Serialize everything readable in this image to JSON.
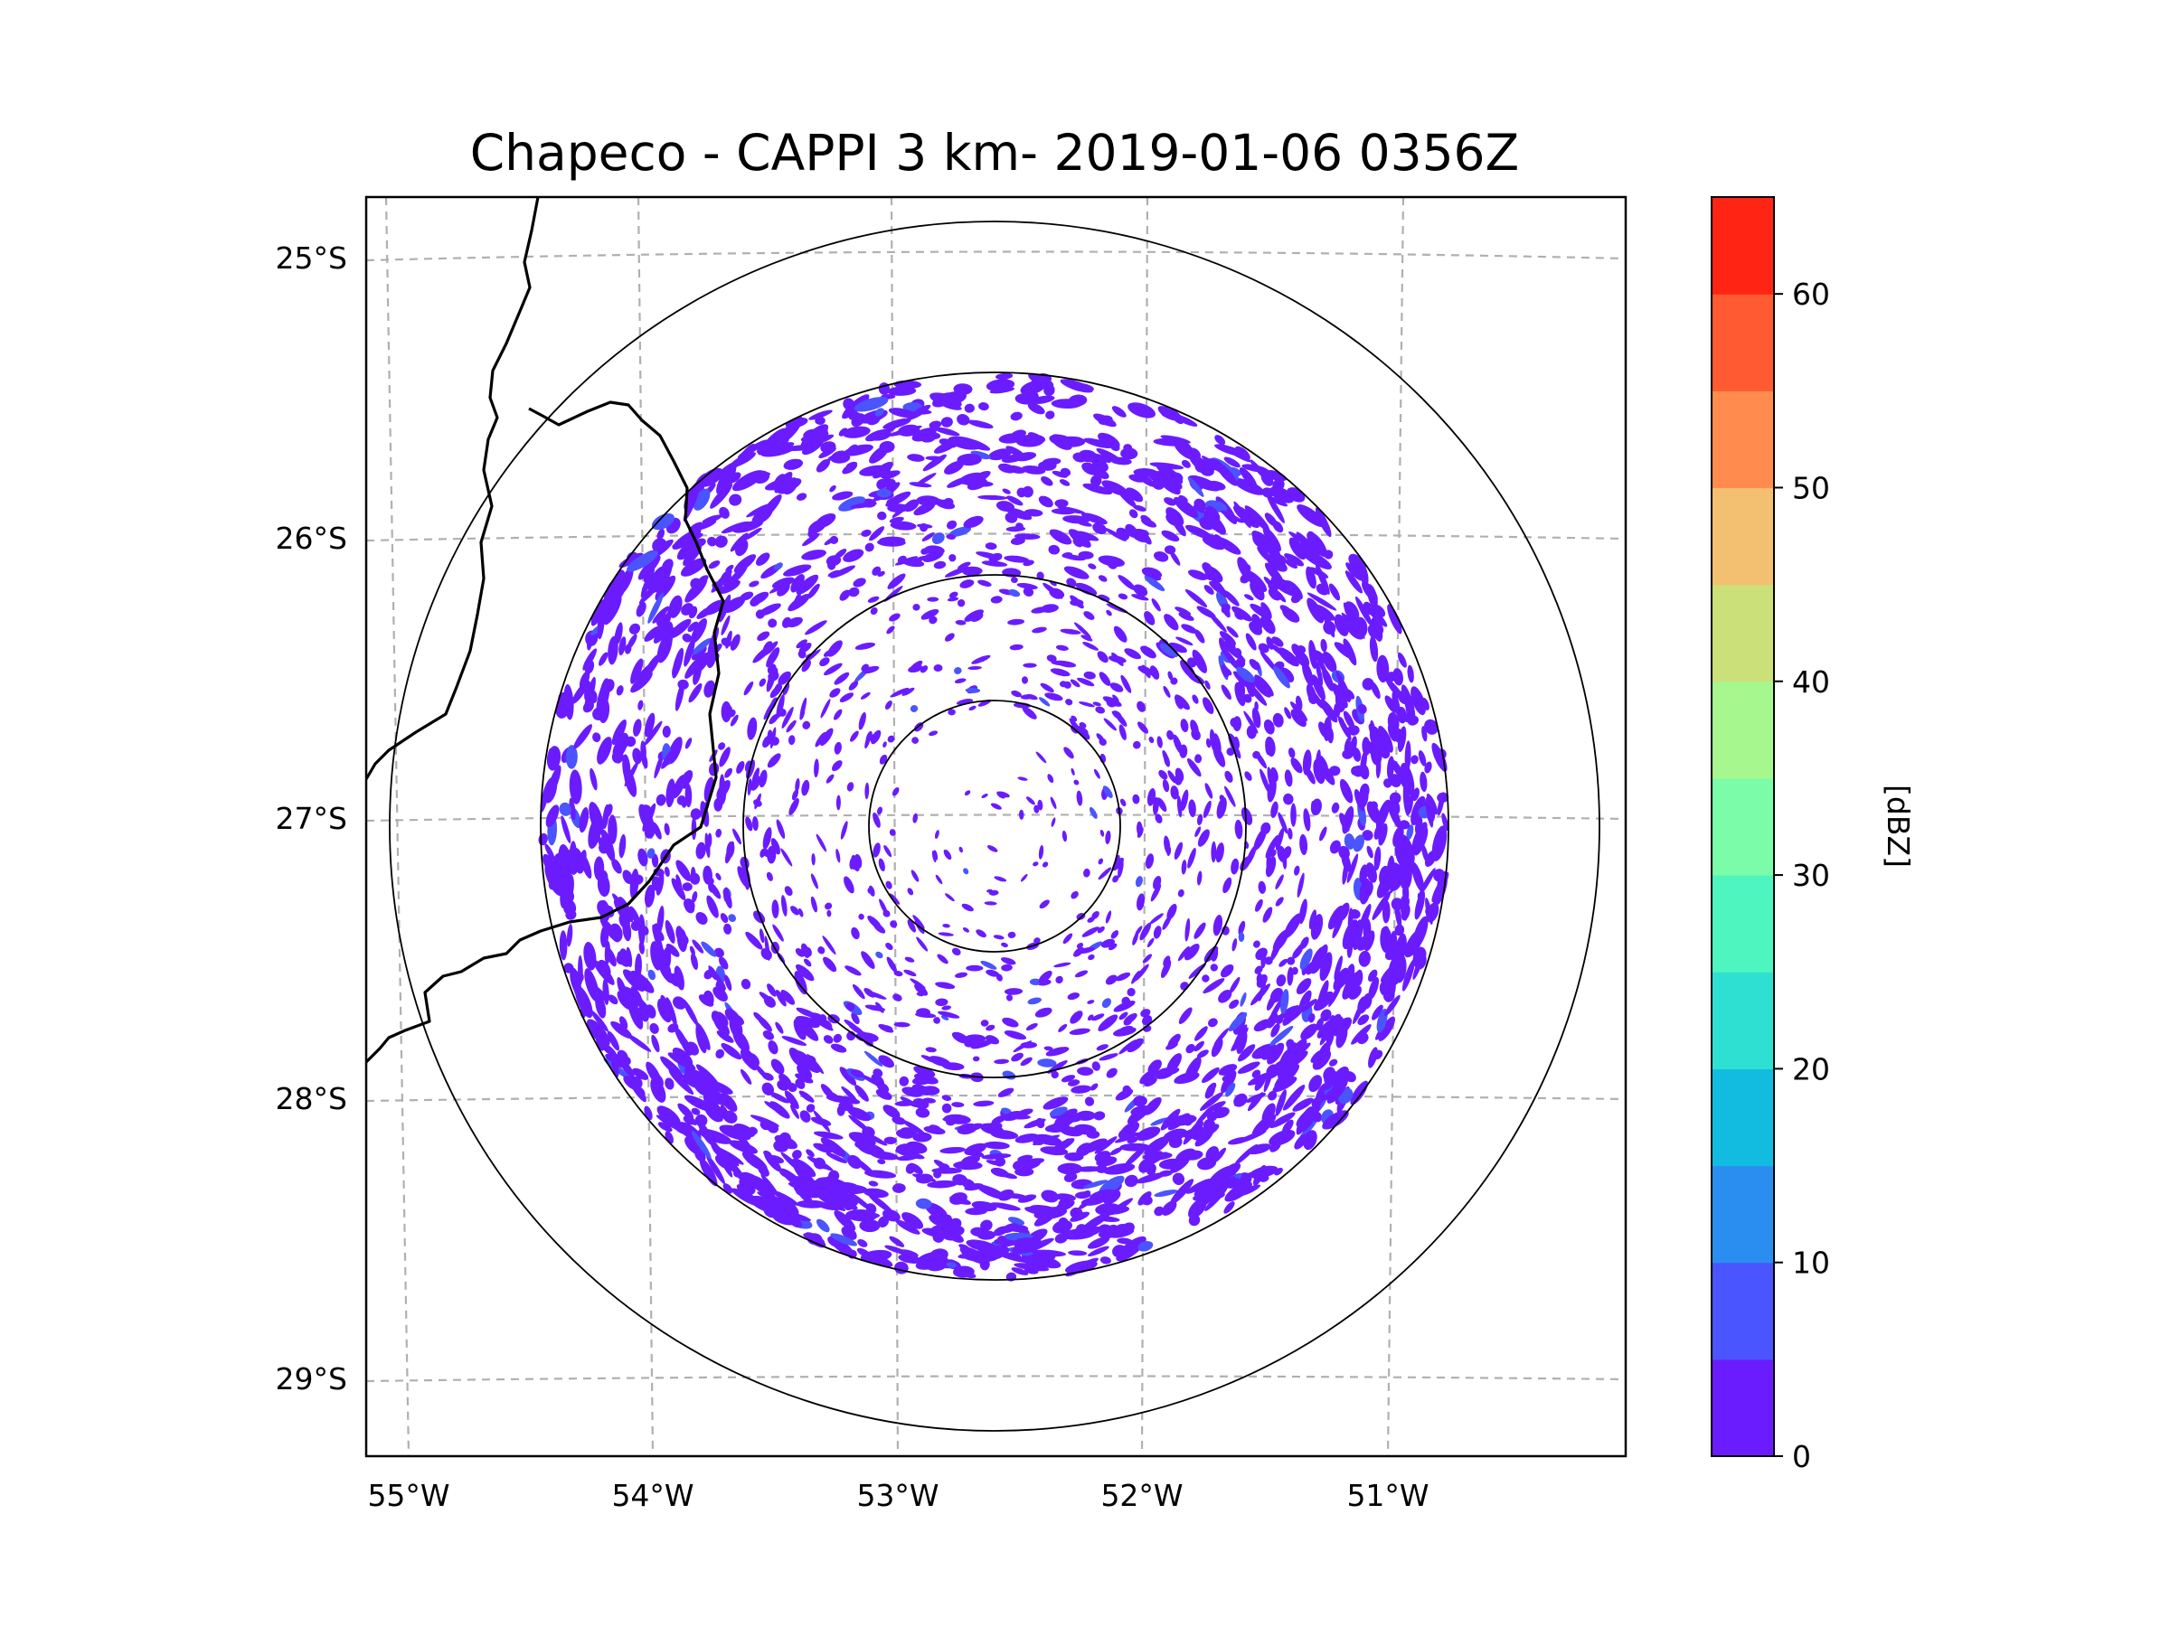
{
  "title": "Chapeco - CAPPI 3 km- 2019-01-06 0356Z",
  "map": {
    "lat_labels": [
      "25°S",
      "26°S",
      "27°S",
      "28°S",
      "29°S"
    ],
    "lon_labels": [
      "55°W",
      "54°W",
      "53°W",
      "52°W",
      "51°W"
    ],
    "range_rings": [
      "50 km",
      "100 km",
      "200 km",
      "250 km"
    ],
    "echo_color": "#6a1cff",
    "border_color": "#000000",
    "grid_color": "#b0b0b0"
  },
  "colorbar": {
    "label": "[dBZ]",
    "tick_labels": [
      "0",
      "10",
      "20",
      "30",
      "40",
      "50",
      "60"
    ],
    "min": 0,
    "max": 65,
    "step": 5,
    "colors": [
      "#6a1cff",
      "#4a54ff",
      "#2a8ef0",
      "#12bce0",
      "#2ee0d2",
      "#4ef5be",
      "#7afca8",
      "#a6f88e",
      "#cce07a",
      "#f2c070",
      "#ff8c4e",
      "#ff5a32",
      "#ff2414"
    ]
  }
}
